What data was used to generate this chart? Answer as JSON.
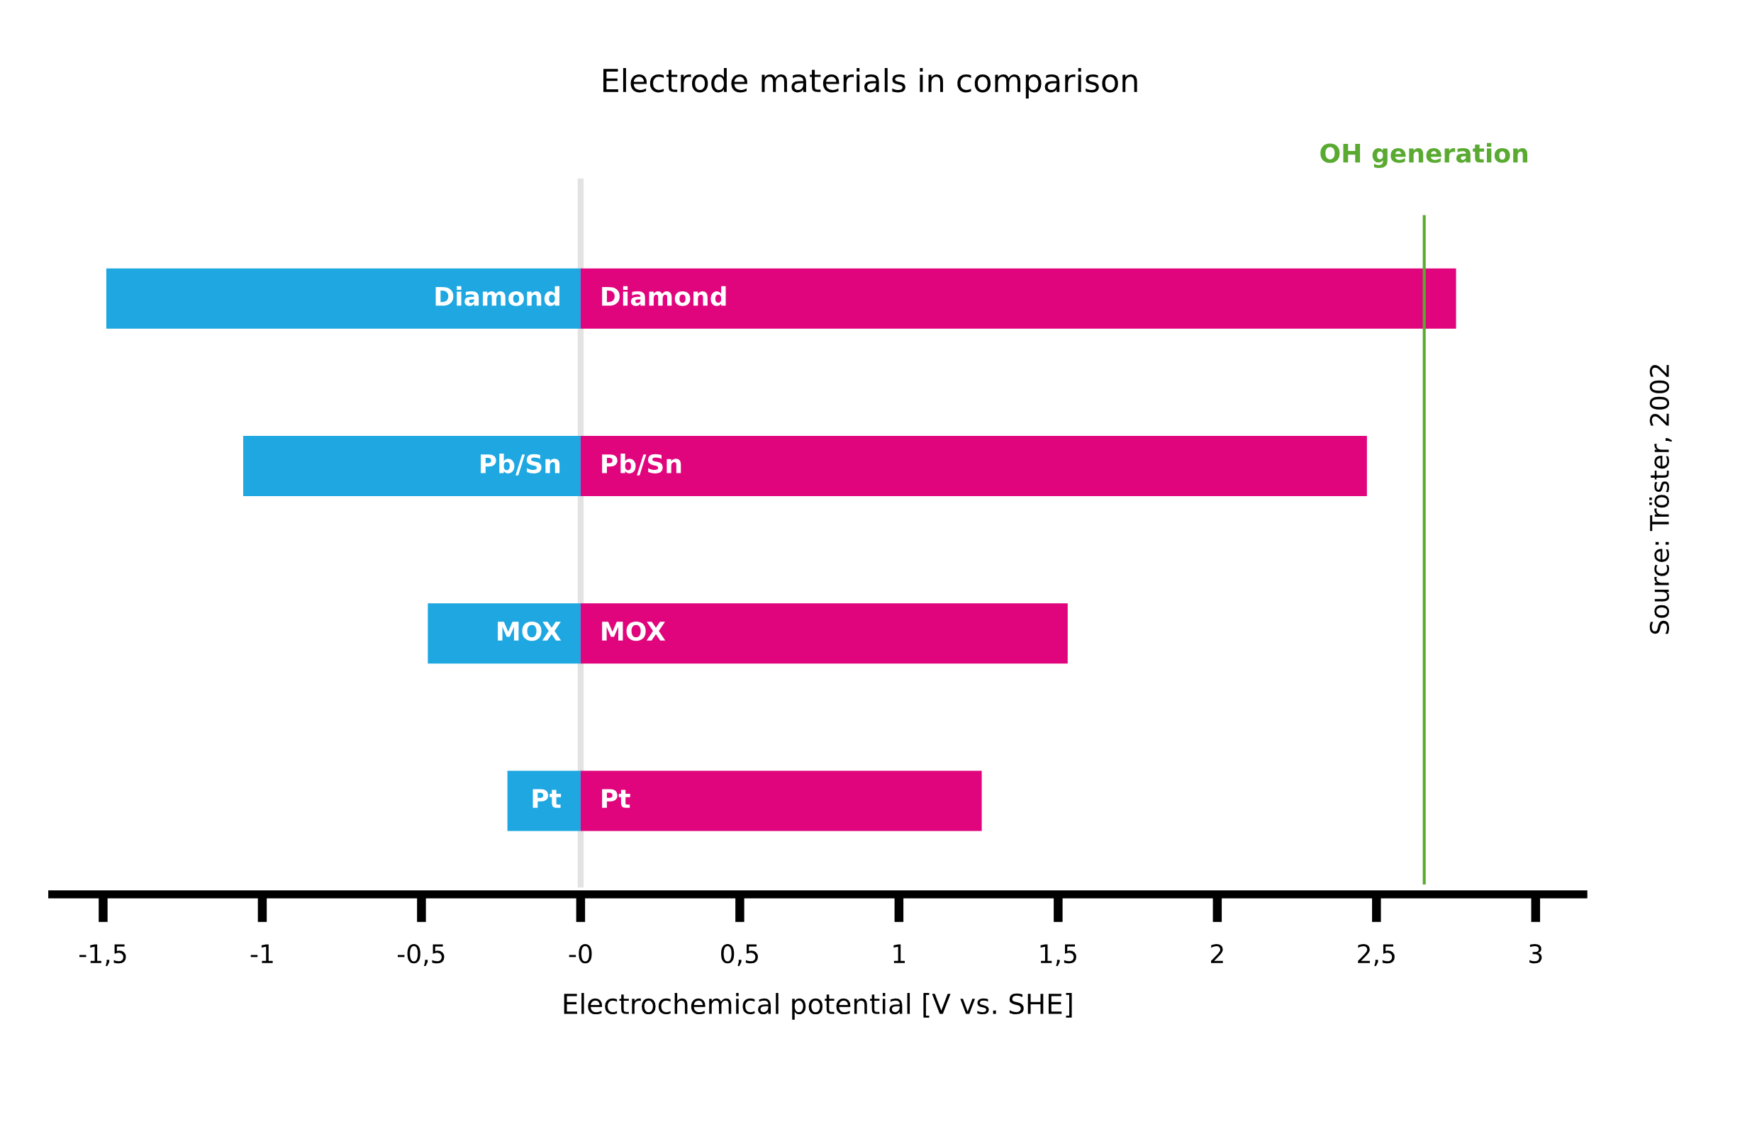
{
  "chart_data": {
    "type": "bar",
    "orientation": "horizontal",
    "stacked": true,
    "title": "Electrode materials in comparison",
    "xlabel": "Electrochemical potential [V vs. SHE]",
    "categories": [
      "Diamond",
      "Pb/Sn",
      "MOX",
      "Pt"
    ],
    "series": [
      {
        "color": "#1ea7e1",
        "values": [
          -1.49,
          -1.06,
          -0.48,
          -0.23
        ]
      },
      {
        "color": "#e0047d",
        "values": [
          2.75,
          2.47,
          1.53,
          1.26
        ]
      }
    ],
    "xlim": [
      -1.66,
      3.15
    ],
    "xticks": [
      {
        "value": -1.5,
        "label": "-1,5"
      },
      {
        "value": -1,
        "label": "-1"
      },
      {
        "value": -0.5,
        "label": "-0,5"
      },
      {
        "value": 0,
        "label": "-0"
      },
      {
        "value": 0.5,
        "label": "0,5"
      },
      1,
      {
        "value": 1.5,
        "label": "1,5"
      },
      2,
      {
        "value": 2.5,
        "label": "2,5"
      },
      3
    ],
    "tick_labels": "x",
    "grid": false,
    "legend": false,
    "ref_lines": [
      {
        "axis": "x",
        "value": 2.65,
        "label": "OH generation",
        "color": "#5aaa32"
      }
    ],
    "annotations": [
      "Source: Tröster, 2002"
    ]
  }
}
